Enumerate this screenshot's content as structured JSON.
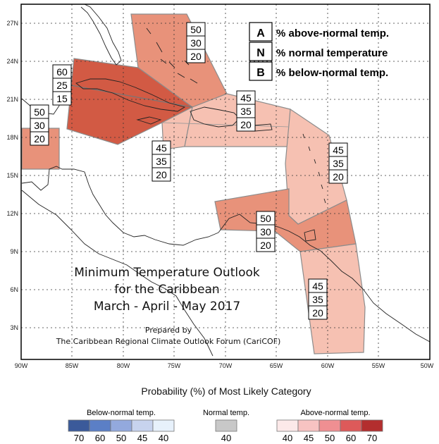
{
  "map": {
    "lat_ticks": [
      "27N",
      "24N",
      "21N",
      "18N",
      "15N",
      "12N",
      "9N",
      "6N",
      "3N"
    ],
    "lon_ticks": [
      "90W",
      "85W",
      "80W",
      "75W",
      "70W",
      "65W",
      "60W",
      "55W",
      "50W"
    ]
  },
  "legend_key": [
    {
      "letter": "A",
      "text": "% above-normal temp."
    },
    {
      "letter": "N",
      "text": "% normal temperature"
    },
    {
      "letter": "B",
      "text": "% below-normal temp."
    }
  ],
  "title": {
    "line1": "Minimum Temperature Outlook",
    "line2": "for the Caribbean",
    "line3": "March - April - May 2017",
    "prepared_by": "Prepared by",
    "forum": "The Caribbean Regional Climate Outlook Forum (CariCOF)"
  },
  "regions": [
    {
      "id": "bahamas",
      "values": [
        "50",
        "30",
        "20"
      ],
      "color": "#e8927a"
    },
    {
      "id": "cuba-jamaica",
      "values": [
        "60",
        "25",
        "15"
      ],
      "color": "#d25a44"
    },
    {
      "id": "belize",
      "values": [
        "50",
        "30",
        "20"
      ],
      "color": "#e8927a"
    },
    {
      "id": "cayman",
      "values": [
        "45",
        "35",
        "20"
      ],
      "color": "#f6c1b2"
    },
    {
      "id": "hispaniola",
      "values": [
        "45",
        "35",
        "20"
      ],
      "color": "#f6c1b2"
    },
    {
      "id": "lesser-antilles",
      "values": [
        "45",
        "35",
        "20"
      ],
      "color": "#f6c1b2"
    },
    {
      "id": "southern",
      "values": [
        "50",
        "30",
        "20"
      ],
      "color": "#e8927a"
    },
    {
      "id": "guianas",
      "values": [
        "45",
        "35",
        "20"
      ],
      "color": "#f6c1b2"
    }
  ],
  "colorbar": {
    "heading": "Probability (%) of Most Likely Category",
    "below": {
      "label": "Below-normal temp.",
      "ticks": [
        "70",
        "60",
        "50",
        "45",
        "40"
      ],
      "colors": [
        "#3b5a9a",
        "#5b7fc6",
        "#93a9dd",
        "#c7d3ee",
        "#e7f1fb"
      ]
    },
    "normal": {
      "label": "Normal temp.",
      "ticks": [
        "40"
      ],
      "colors": [
        "#c8c8c8"
      ]
    },
    "above": {
      "label": "Above-normal temp.",
      "ticks": [
        "40",
        "45",
        "50",
        "60",
        "70"
      ],
      "colors": [
        "#fce9e9",
        "#f7c3c2",
        "#ef8f92",
        "#dd5a5a",
        "#b32e2e"
      ]
    }
  }
}
